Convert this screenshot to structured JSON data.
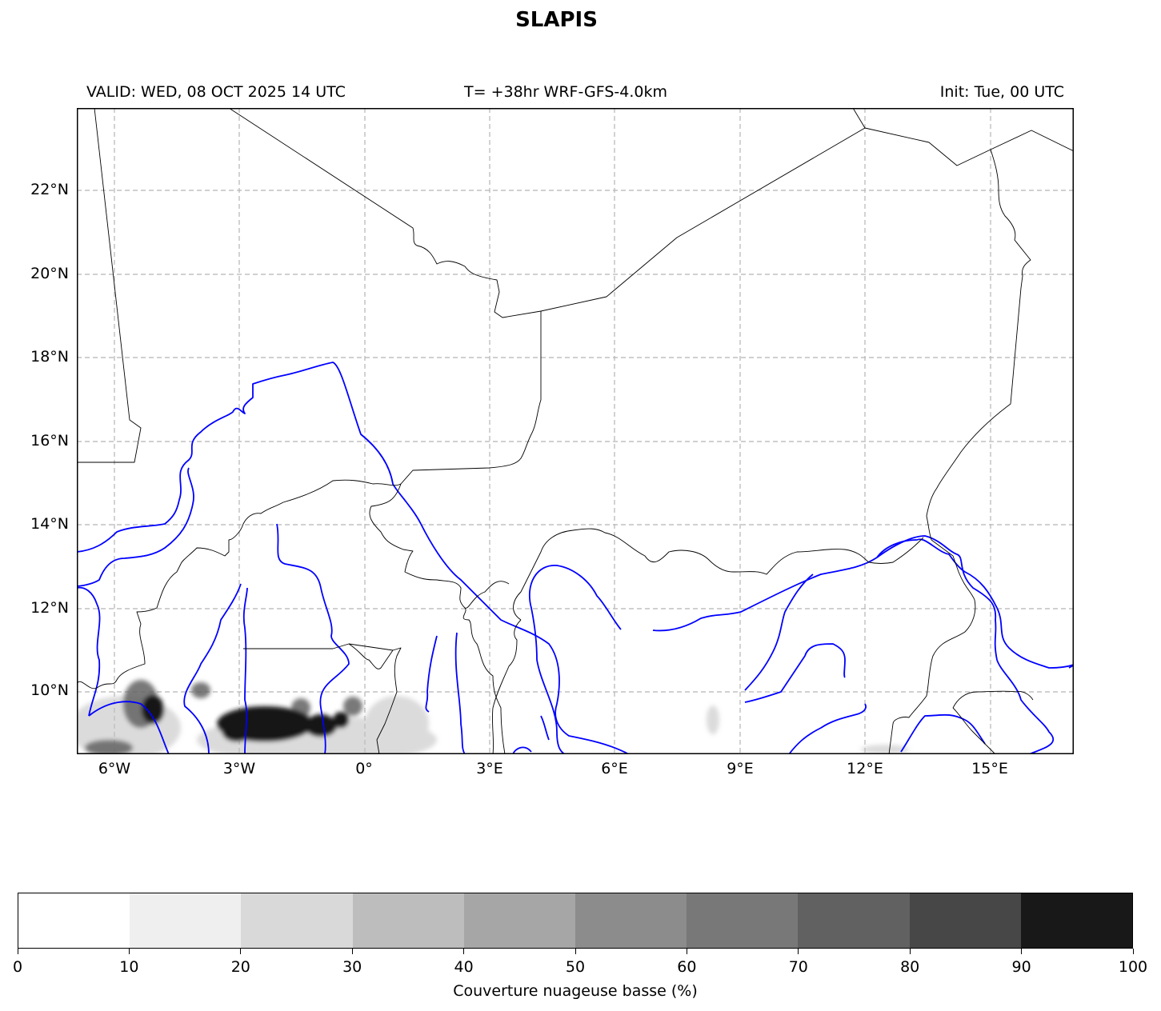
{
  "title": "SLAPIS",
  "subtitle": {
    "left": "VALID: WED, 08 OCT 2025 14 UTC",
    "center": "T= +38hr WRF-GFS-4.0km",
    "right": "Init: Tue, 00 UTC"
  },
  "map": {
    "lon_range": [
      -7.5,
      16.5
    ],
    "lat_range": [
      8.5,
      24
    ],
    "lat_ticks": [
      "22°N",
      "20°N",
      "18°N",
      "16°N",
      "14°N",
      "12°N",
      "10°N"
    ],
    "lon_ticks": [
      "6°W",
      "3°W",
      "0°",
      "3°E",
      "6°E",
      "9°E",
      "12°E",
      "15°E"
    ],
    "gridlines": "dashed",
    "border_color": "#000000",
    "river_color": "#0000ff",
    "field": "low cloud cover"
  },
  "colorbar": {
    "ticks": [
      "0",
      "10",
      "20",
      "30",
      "40",
      "50",
      "60",
      "70",
      "80",
      "90",
      "100"
    ],
    "colors": [
      "#ffffff",
      "#efefef",
      "#d9d9d9",
      "#bdbdbd",
      "#a6a6a6",
      "#8c8c8c",
      "#787878",
      "#616161",
      "#474747",
      "#181818"
    ],
    "label": "Couverture nuageuse basse (%)"
  }
}
